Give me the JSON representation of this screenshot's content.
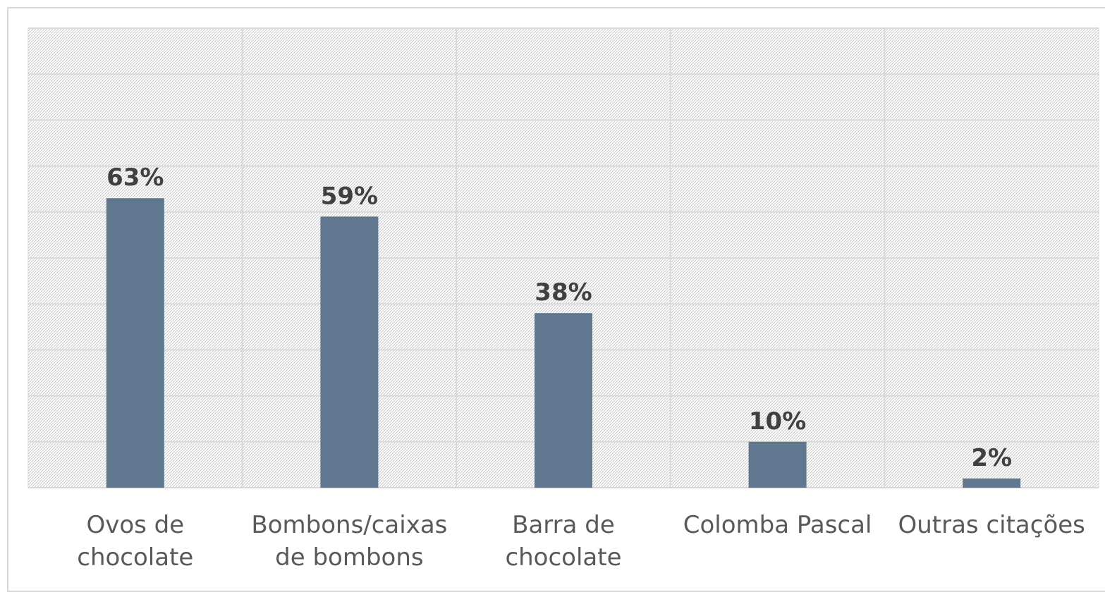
{
  "chart_data": {
    "type": "bar",
    "categories": [
      "Ovos de chocolate",
      "Bombons/caixas de bombons",
      "Barra de chocolate",
      "Colomba Pascal",
      "Outras citações"
    ],
    "values": [
      63,
      59,
      38,
      10,
      2
    ],
    "value_labels": [
      "63%",
      "59%",
      "38%",
      "10%",
      "2%"
    ],
    "color": "#5f7890",
    "ylim": [
      0,
      100
    ],
    "yticks": [
      0,
      10,
      20,
      30,
      40,
      50,
      60,
      70,
      80,
      90,
      100
    ],
    "grid": true
  }
}
